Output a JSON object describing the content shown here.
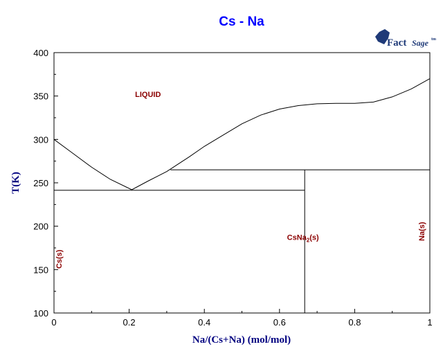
{
  "chart_data": {
    "type": "line",
    "title": "Cs - Na",
    "xlabel": "Na/(Cs+Na) (mol/mol)",
    "ylabel": "T(K)",
    "xlim": [
      0,
      1
    ],
    "ylim": [
      100,
      400
    ],
    "x_ticks": [
      0,
      0.2,
      0.4,
      0.6,
      0.8,
      1
    ],
    "x_tick_labels": [
      "0",
      "0.2",
      "0.4",
      "0.6",
      "0.8",
      "1"
    ],
    "y_ticks": [
      100,
      150,
      200,
      250,
      300,
      350,
      400
    ],
    "y_tick_labels": [
      "100",
      "150",
      "200",
      "250",
      "300",
      "350",
      "400"
    ],
    "grid": false,
    "series": [
      {
        "x": [
          0,
          0.05,
          0.1,
          0.15,
          0.207
        ],
        "y": [
          300,
          284,
          268,
          254,
          242
        ]
      },
      {
        "x": [
          0.207,
          0.25,
          0.3,
          0.36,
          0.4,
          0.45,
          0.5,
          0.55,
          0.6,
          0.65,
          0.7,
          0.75,
          0.8,
          0.85,
          0.9,
          0.95,
          1.0
        ],
        "y": [
          242,
          252,
          263,
          280,
          292,
          305,
          318,
          328,
          335,
          339,
          341,
          341.5,
          341.5,
          343,
          349,
          358,
          370
        ]
      },
      {
        "x": [
          0,
          0.667
        ],
        "y": [
          241.5,
          241.5
        ]
      },
      {
        "x": [
          0.31,
          1.0
        ],
        "y": [
          265,
          265
        ]
      },
      {
        "x": [
          0.667,
          0.667
        ],
        "y": [
          100,
          265
        ]
      }
    ],
    "annotations": [
      {
        "text": "LIQUID",
        "x": 0.25,
        "y": 349,
        "rotate": false
      },
      {
        "text_main": "CsNa",
        "text_sub": "2",
        "text_tail": "(s)",
        "x": 0.62,
        "y": 184,
        "rotate": false
      },
      {
        "text": "Cs(s)",
        "x": 0.02,
        "y": 162,
        "rotate": true
      },
      {
        "text": "Na(s)",
        "x": 0.985,
        "y": 194,
        "rotate": true
      }
    ]
  },
  "logo": {
    "word1": "Fact",
    "word2": "Sage",
    "mark": "tm"
  }
}
